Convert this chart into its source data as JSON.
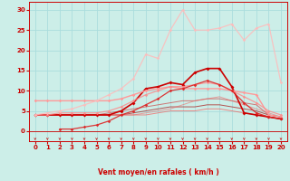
{
  "xlabel": "Vent moyen/en rafales ( km/h )",
  "background_color": "#cceee8",
  "grid_color": "#aadddd",
  "xlim": [
    -0.5,
    20.5
  ],
  "ylim": [
    -2.5,
    32
  ],
  "xticks": [
    0,
    1,
    2,
    3,
    4,
    5,
    6,
    7,
    8,
    9,
    10,
    11,
    12,
    13,
    14,
    15,
    16,
    17,
    18,
    19,
    20
  ],
  "yticks": [
    0,
    5,
    10,
    15,
    20,
    25,
    30
  ],
  "series": [
    {
      "x": [
        0,
        1,
        2,
        3,
        4,
        5,
        6,
        7,
        8,
        9,
        10,
        11,
        12,
        13,
        14,
        15,
        16,
        17,
        18,
        19,
        20
      ],
      "y": [
        4.0,
        4.0,
        4.0,
        4.0,
        4.0,
        4.0,
        4.0,
        5.0,
        7.0,
        10.5,
        11.0,
        12.0,
        11.5,
        14.5,
        15.5,
        15.5,
        11.0,
        4.5,
        4.0,
        3.5,
        3.0
      ],
      "color": "#cc0000",
      "marker": "D",
      "markersize": 2.0,
      "linewidth": 1.2,
      "alpha": 1.0
    },
    {
      "x": [
        0,
        1,
        2,
        3,
        4,
        5,
        6,
        7,
        8,
        9,
        10,
        11,
        12,
        13,
        14,
        15,
        16,
        17,
        18,
        19,
        20
      ],
      "y": [
        7.5,
        7.5,
        7.5,
        7.5,
        7.5,
        7.5,
        7.5,
        8.0,
        9.0,
        10.0,
        10.5,
        11.0,
        10.5,
        10.5,
        10.5,
        10.5,
        10.0,
        9.5,
        9.0,
        4.0,
        3.5
      ],
      "color": "#ff9999",
      "marker": "D",
      "markersize": 1.8,
      "linewidth": 1.0,
      "alpha": 1.0
    },
    {
      "x": [
        0,
        1,
        2,
        3,
        4,
        5,
        6,
        7,
        8,
        9,
        10,
        11,
        12,
        13,
        14,
        15,
        16,
        17,
        18,
        19,
        20
      ],
      "y": [
        4.0,
        4.0,
        4.5,
        4.5,
        4.5,
        4.5,
        5.0,
        6.0,
        7.5,
        9.0,
        10.0,
        11.0,
        11.0,
        11.5,
        12.0,
        11.5,
        10.0,
        8.5,
        7.0,
        5.0,
        4.0
      ],
      "color": "#ff8888",
      "marker": "D",
      "markersize": 1.8,
      "linewidth": 0.9,
      "alpha": 0.8
    },
    {
      "x": [
        2,
        3,
        4,
        5,
        6,
        7,
        8,
        9,
        10,
        11,
        12,
        13,
        14,
        15,
        16,
        17,
        18,
        19,
        20
      ],
      "y": [
        0.5,
        0.5,
        1.0,
        1.5,
        2.5,
        4.0,
        5.0,
        6.5,
        8.0,
        10.0,
        10.5,
        11.5,
        12.5,
        11.5,
        10.0,
        7.0,
        4.5,
        3.5,
        3.0
      ],
      "color": "#dd2222",
      "marker": "D",
      "markersize": 1.8,
      "linewidth": 0.9,
      "alpha": 0.9
    },
    {
      "x": [
        0,
        1,
        2,
        3,
        4,
        5,
        6,
        7,
        8,
        9,
        10,
        11,
        12,
        13,
        14,
        15,
        16,
        17,
        18,
        19,
        20
      ],
      "y": [
        4.0,
        4.5,
        5.0,
        5.5,
        6.5,
        7.5,
        9.0,
        10.5,
        13.0,
        19.0,
        18.0,
        25.0,
        30.0,
        25.0,
        25.0,
        25.5,
        26.5,
        22.5,
        25.5,
        26.5,
        12.0
      ],
      "color": "#ffbbbb",
      "marker": "D",
      "markersize": 1.8,
      "linewidth": 0.9,
      "alpha": 0.85
    },
    {
      "x": [
        0,
        1,
        2,
        3,
        4,
        5,
        6,
        7,
        8,
        9,
        10,
        11,
        12,
        13,
        14,
        15,
        16,
        17,
        18,
        19,
        20
      ],
      "y": [
        4.0,
        4.0,
        4.0,
        4.0,
        4.0,
        4.0,
        4.5,
        5.0,
        5.5,
        6.0,
        6.5,
        7.0,
        7.5,
        7.5,
        8.0,
        8.0,
        7.5,
        7.0,
        6.5,
        4.0,
        3.5
      ],
      "color": "#cc4444",
      "marker": null,
      "linewidth": 0.7,
      "alpha": 0.7
    },
    {
      "x": [
        0,
        1,
        2,
        3,
        4,
        5,
        6,
        7,
        8,
        9,
        10,
        11,
        12,
        13,
        14,
        15,
        16,
        17,
        18,
        19,
        20
      ],
      "y": [
        4.0,
        4.0,
        4.0,
        4.0,
        4.0,
        4.0,
        4.0,
        4.0,
        4.5,
        5.0,
        5.5,
        6.0,
        6.0,
        6.0,
        6.5,
        6.5,
        6.0,
        5.5,
        5.0,
        4.0,
        3.5
      ],
      "color": "#aa1111",
      "marker": null,
      "linewidth": 0.7,
      "alpha": 0.7
    },
    {
      "x": [
        0,
        1,
        2,
        3,
        4,
        5,
        6,
        7,
        8,
        9,
        10,
        11,
        12,
        13,
        14,
        15,
        16,
        17,
        18,
        19,
        20
      ],
      "y": [
        4.0,
        4.0,
        4.0,
        4.0,
        4.0,
        4.0,
        4.0,
        4.0,
        4.0,
        4.0,
        4.5,
        5.0,
        5.0,
        5.0,
        5.5,
        5.5,
        5.0,
        4.5,
        4.0,
        3.5,
        3.0
      ],
      "color": "#ff4444",
      "marker": null,
      "linewidth": 0.7,
      "alpha": 0.6
    },
    {
      "x": [
        0,
        1,
        2,
        3,
        4,
        5,
        6,
        7,
        8,
        9,
        10,
        11,
        12,
        13,
        14,
        15,
        16,
        17,
        18,
        19,
        20
      ],
      "y": [
        4.0,
        4.0,
        4.0,
        4.0,
        4.0,
        4.0,
        4.0,
        4.0,
        4.0,
        4.5,
        5.0,
        5.5,
        6.5,
        7.5,
        8.0,
        8.5,
        7.5,
        6.5,
        5.5,
        4.5,
        3.5
      ],
      "color": "#ee6666",
      "marker": null,
      "linewidth": 0.7,
      "alpha": 0.6
    }
  ],
  "wind_arrows_x": [
    0,
    1,
    2,
    3,
    4,
    5,
    6,
    7,
    8,
    9,
    10,
    11,
    12,
    13,
    14,
    15,
    16,
    17,
    18,
    19,
    20
  ],
  "label_fontsize": 5.5,
  "tick_fontsize": 5.0
}
